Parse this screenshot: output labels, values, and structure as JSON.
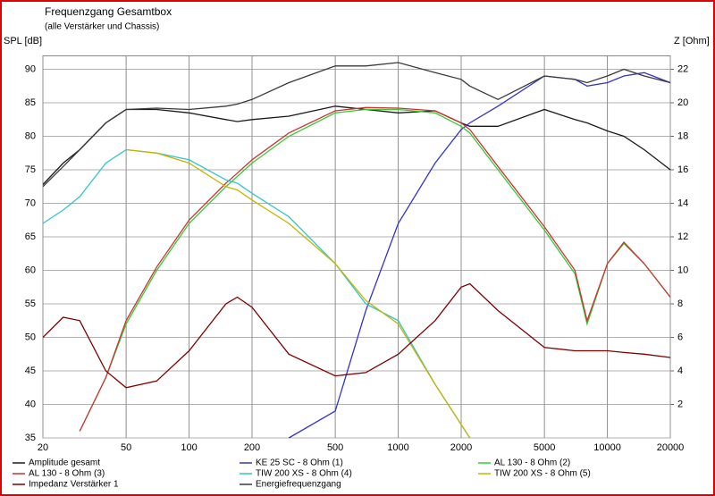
{
  "chart_data": {
    "type": "line",
    "title": "Frequenzgang Gesamtbox",
    "subtitle": "(alle Verstärker und Chassis)",
    "ylabel": "SPL [dB]",
    "y2label": "Z [Ohm]",
    "xscale": "log",
    "grid": true,
    "legend": "bottom",
    "x": [
      20,
      25,
      30,
      40,
      50,
      70,
      100,
      150,
      170,
      200,
      300,
      500,
      700,
      1000,
      1500,
      2000,
      2200,
      3000,
      5000,
      7000,
      8000,
      10000,
      12000,
      15000,
      20000
    ],
    "xlim": [
      20,
      20000
    ],
    "xticks": [
      20,
      50,
      100,
      200,
      500,
      1000,
      2000,
      5000,
      10000,
      20000
    ],
    "ylim": [
      35,
      92
    ],
    "yticks": [
      35,
      40,
      45,
      50,
      55,
      60,
      65,
      70,
      75,
      80,
      85,
      90
    ],
    "y2lim": [
      0,
      22.8
    ],
    "y2ticks": [
      2,
      4,
      6,
      8,
      10,
      12,
      14,
      16,
      18,
      20,
      22
    ],
    "series": [
      {
        "name": "Amplitude gesamt",
        "color": "#1a1a1a",
        "values": [
          72.8,
          76,
          78,
          82,
          84,
          84,
          83.5,
          82.5,
          82.2,
          82.5,
          83,
          84.5,
          84,
          83.5,
          83.8,
          82,
          81.5,
          81.5,
          84,
          82.5,
          82,
          80.8,
          80,
          78,
          75
        ]
      },
      {
        "name": "KE 25 SC - 8 Ohm   (1)",
        "color": "#3333cc",
        "values": [
          null,
          null,
          null,
          null,
          null,
          null,
          null,
          null,
          null,
          null,
          35,
          39,
          54,
          67,
          76,
          81,
          82,
          84.5,
          89,
          88.5,
          87.5,
          88,
          89,
          89.5,
          88
        ]
      },
      {
        "name": "AL 130 - 8 Ohm (2)",
        "color": "#33cc33",
        "values": [
          null,
          null,
          36,
          44,
          52,
          60,
          67,
          72.5,
          74,
          76,
          80,
          83.5,
          84,
          84,
          83.5,
          81.5,
          80.5,
          75,
          66,
          59.5,
          52,
          61,
          64,
          61,
          56
        ]
      },
      {
        "name": "AL 130 - 8 Ohm (3)",
        "color": "#cc3333",
        "values": [
          null,
          null,
          36,
          44,
          52.5,
          60.5,
          67.5,
          73,
          74.5,
          76.5,
          80.5,
          83.8,
          84.3,
          84.2,
          83.8,
          82,
          81,
          75.5,
          66.5,
          60,
          52.5,
          61,
          64.2,
          61,
          56
        ]
      },
      {
        "name": "TIW 200 XS - 8 Ohm (4)",
        "color": "#33c4cc",
        "values": [
          67,
          69,
          71,
          76,
          78,
          77.5,
          76.5,
          73.5,
          73,
          71.5,
          68,
          61,
          55,
          52.5,
          43,
          37,
          35,
          null,
          null,
          null,
          null,
          null,
          null,
          null,
          null
        ]
      },
      {
        "name": "TIW 200 XS - 8 Ohm (5)",
        "color": "#c8b400",
        "values": [
          null,
          null,
          null,
          null,
          78,
          77.5,
          76,
          72.5,
          72,
          70.5,
          67,
          61,
          55.5,
          52,
          43,
          37,
          35,
          null,
          null,
          null,
          null,
          null,
          null,
          null,
          null
        ]
      },
      {
        "name": "Impedanz Verstärker 1",
        "color": "#800000",
        "axis": "y2",
        "values": [
          6,
          7.2,
          7,
          4,
          3,
          3.4,
          5.2,
          8,
          8.4,
          7.8,
          5,
          3.7,
          3.9,
          5,
          7,
          9,
          9.2,
          7.6,
          5.4,
          5.2,
          5.2,
          5.2,
          5.1,
          5,
          4.8
        ]
      },
      {
        "name": "Energiefrequenzgang",
        "color": "#3a3a3a",
        "values": [
          72.5,
          75.5,
          78,
          82,
          84,
          84.2,
          84,
          84.5,
          84.8,
          85.5,
          88,
          90.5,
          90.5,
          91,
          89.5,
          88.5,
          87.5,
          85.5,
          89,
          88.5,
          88,
          89,
          90,
          89,
          88
        ]
      }
    ]
  }
}
